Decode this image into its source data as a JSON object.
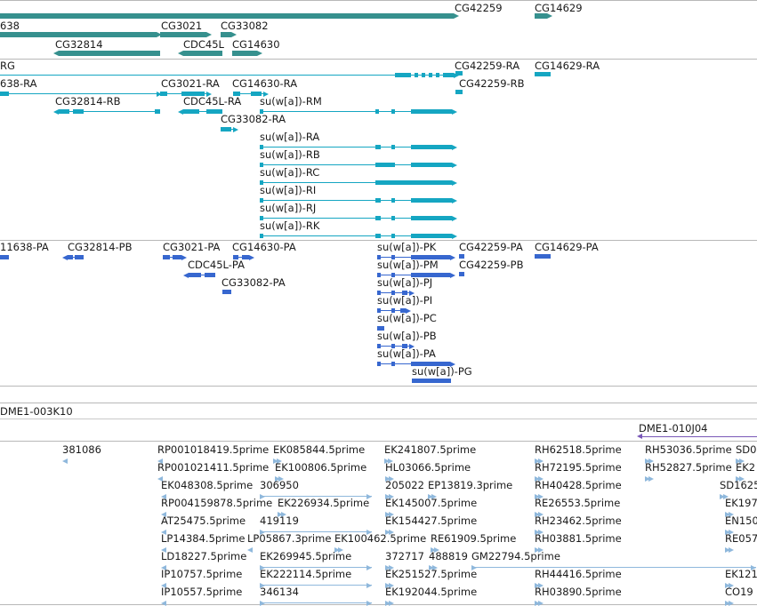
{
  "colors": {
    "gene": "#36908e",
    "transcript": "#15a6c2",
    "polypeptide": "#3767cf",
    "est": "#8fb8dc",
    "bac": "#7a58b8",
    "line": "#b8b8b8"
  },
  "genes": [
    {
      "id": "g1",
      "label": "638"
    },
    {
      "id": "g2",
      "label": "CG3021"
    },
    {
      "id": "g3",
      "label": "CG33082"
    },
    {
      "id": "g4",
      "label": "CG42259"
    },
    {
      "id": "g5",
      "label": "CG14629"
    },
    {
      "id": "g6",
      "label": "CG32814"
    },
    {
      "id": "g7",
      "label": "CDC45L"
    },
    {
      "id": "g8",
      "label": "CG14630"
    }
  ],
  "transcripts": [
    {
      "id": "t1",
      "label": "RG"
    },
    {
      "id": "t2",
      "label": "CG42259-RA"
    },
    {
      "id": "t3",
      "label": "CG14629-RA"
    },
    {
      "id": "t4",
      "label": "638-RA"
    },
    {
      "id": "t5",
      "label": "CG3021-RA"
    },
    {
      "id": "t6",
      "label": "CG14630-RA"
    },
    {
      "id": "t7",
      "label": "CG42259-RB"
    },
    {
      "id": "t8",
      "label": "CG32814-RB"
    },
    {
      "id": "t9",
      "label": "CDC45L-RA"
    },
    {
      "id": "t10",
      "label": "su(w[a])-RM"
    },
    {
      "id": "t11",
      "label": "CG33082-RA"
    },
    {
      "id": "t12",
      "label": "su(w[a])-RA"
    },
    {
      "id": "t13",
      "label": "su(w[a])-RB"
    },
    {
      "id": "t14",
      "label": "su(w[a])-RC"
    },
    {
      "id": "t15",
      "label": "su(w[a])-RI"
    },
    {
      "id": "t16",
      "label": "su(w[a])-RJ"
    },
    {
      "id": "t17",
      "label": "su(w[a])-RK"
    }
  ],
  "polypeptides": [
    {
      "id": "p1",
      "label": "11638-PA"
    },
    {
      "id": "p2",
      "label": "CG32814-PB"
    },
    {
      "id": "p3",
      "label": "CG3021-PA"
    },
    {
      "id": "p4",
      "label": "CG14630-PA"
    },
    {
      "id": "p5",
      "label": "su(w[a])-PK"
    },
    {
      "id": "p6",
      "label": "CG42259-PA"
    },
    {
      "id": "p7",
      "label": "CG14629-PA"
    },
    {
      "id": "p8",
      "label": "CDC45L-PA"
    },
    {
      "id": "p9",
      "label": "su(w[a])-PM"
    },
    {
      "id": "p10",
      "label": "CG42259-PB"
    },
    {
      "id": "p11",
      "label": "CG33082-PA"
    },
    {
      "id": "p12",
      "label": "su(w[a])-PJ"
    },
    {
      "id": "p13",
      "label": "su(w[a])-PI"
    },
    {
      "id": "p14",
      "label": "su(w[a])-PC"
    },
    {
      "id": "p15",
      "label": "su(w[a])-PB"
    },
    {
      "id": "p16",
      "label": "su(w[a])-PA"
    },
    {
      "id": "p17",
      "label": "su(w[a])-PG"
    }
  ],
  "bacs": [
    {
      "id": "b1",
      "label": "DME1-003K10"
    },
    {
      "id": "b2",
      "label": "DME1-010J04"
    }
  ],
  "ests": [
    {
      "id": "e1",
      "label": "381086"
    },
    {
      "id": "e2",
      "label": "RP001018419.5prime"
    },
    {
      "id": "e3",
      "label": "EK085844.5prime"
    },
    {
      "id": "e4",
      "label": "EK241807.5prime"
    },
    {
      "id": "e5",
      "label": "RH62518.5prime"
    },
    {
      "id": "e6",
      "label": "RH53036.5prime"
    },
    {
      "id": "e7",
      "label": "SD0"
    },
    {
      "id": "e8",
      "label": "RP001021411.5prime"
    },
    {
      "id": "e9",
      "label": "EK100806.5prime"
    },
    {
      "id": "e10",
      "label": "HL03066.5prime"
    },
    {
      "id": "e11",
      "label": "RH72195.5prime"
    },
    {
      "id": "e12",
      "label": "RH52827.5prime"
    },
    {
      "id": "e13",
      "label": "EK2"
    },
    {
      "id": "e14",
      "label": "EK048308.5prime"
    },
    {
      "id": "e15",
      "label": "306950"
    },
    {
      "id": "e16",
      "label": "205022"
    },
    {
      "id": "e17",
      "label": "EP13819.3prime"
    },
    {
      "id": "e18",
      "label": "RH40428.5prime"
    },
    {
      "id": "e19",
      "label": "SD1625"
    },
    {
      "id": "e20",
      "label": "RP004159878.5prime"
    },
    {
      "id": "e21",
      "label": "EK226934.5prime"
    },
    {
      "id": "e22",
      "label": "EK145007.5prime"
    },
    {
      "id": "e23",
      "label": "RE26553.5prime"
    },
    {
      "id": "e24",
      "label": "EK197"
    },
    {
      "id": "e25",
      "label": "AT25475.5prime"
    },
    {
      "id": "e26",
      "label": "419119"
    },
    {
      "id": "e27",
      "label": "EK154427.5prime"
    },
    {
      "id": "e28",
      "label": "RH23462.5prime"
    },
    {
      "id": "e29",
      "label": "EN150"
    },
    {
      "id": "e30",
      "label": "LP14384.5prime"
    },
    {
      "id": "e31",
      "label": "LP05867.3prime"
    },
    {
      "id": "e32",
      "label": "EK100462.5prime"
    },
    {
      "id": "e33",
      "label": "RE61909.5prime"
    },
    {
      "id": "e34",
      "label": "RH03881.5prime"
    },
    {
      "id": "e35",
      "label": "RE057"
    },
    {
      "id": "e36",
      "label": "LD18227.5prime"
    },
    {
      "id": "e37",
      "label": "EK269945.5prime"
    },
    {
      "id": "e38",
      "label": "372717"
    },
    {
      "id": "e39",
      "label": "488819"
    },
    {
      "id": "e40",
      "label": "GM22794.5prime"
    },
    {
      "id": "e41",
      "label": "IP10757.5prime"
    },
    {
      "id": "e42",
      "label": "EK222114.5prime"
    },
    {
      "id": "e43",
      "label": "EK251527.5prime"
    },
    {
      "id": "e44",
      "label": "RH44416.5prime"
    },
    {
      "id": "e45",
      "label": "EK121"
    },
    {
      "id": "e46",
      "label": "IP10557.5prime"
    },
    {
      "id": "e47",
      "label": "346134"
    },
    {
      "id": "e48",
      "label": "EK192044.5prime"
    },
    {
      "id": "e49",
      "label": "RH03890.5prime"
    },
    {
      "id": "e50",
      "label": "CO19"
    }
  ]
}
